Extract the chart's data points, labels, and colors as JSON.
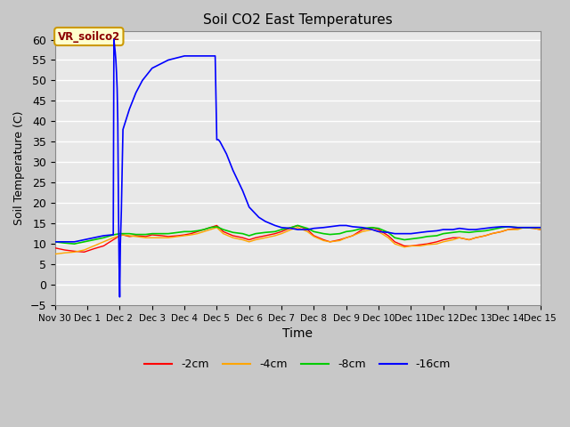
{
  "title": "Soil CO2 East Temperatures",
  "xlabel": "Time",
  "ylabel": "Soil Temperature (C)",
  "ylim": [
    -5,
    62
  ],
  "yticks": [
    -5,
    0,
    5,
    10,
    15,
    20,
    25,
    30,
    35,
    40,
    45,
    50,
    55,
    60
  ],
  "annotation_text": "VR_soilco2",
  "annotation_bg": "#ffffcc",
  "annotation_border": "#cc9900",
  "series_colors": {
    "-2cm": "#ff0000",
    "-4cm": "#ffa500",
    "-8cm": "#00cc00",
    "-16cm": "#0000ff"
  },
  "xtick_labels": [
    "Nov 30",
    "Dec 1",
    "Dec 2",
    "Dec 3",
    "Dec 4",
    "Dec 5",
    "Dec 6",
    "Dec 7",
    "Dec 8",
    "Dec 9",
    "Dec 10",
    "Dec 11",
    "Dec 12",
    "Dec 13",
    "Dec 14",
    "Dec 15"
  ],
  "x_2cm": [
    0,
    0.3,
    0.6,
    0.9,
    1.2,
    1.5,
    1.8,
    2.0,
    2.1,
    2.3,
    2.5,
    2.8,
    3.0,
    3.3,
    3.5,
    3.8,
    4.0,
    4.2,
    4.4,
    4.6,
    4.8,
    5.0,
    5.2,
    5.5,
    5.8,
    6.0,
    6.2,
    6.5,
    6.8,
    7.0,
    7.3,
    7.5,
    7.8,
    8.0,
    8.3,
    8.5,
    8.8,
    9.0,
    9.2,
    9.5,
    9.8,
    10.0,
    10.3,
    10.5,
    10.8,
    11.0,
    11.3,
    11.5,
    11.8,
    12.0,
    12.3,
    12.5,
    12.8,
    13.0,
    13.3,
    13.5,
    13.8,
    14.0,
    14.3,
    14.5,
    14.8,
    15.0
  ],
  "y_2cm": [
    9.0,
    8.5,
    8.2,
    8.0,
    8.8,
    9.5,
    11.0,
    12.0,
    12.2,
    11.8,
    12.0,
    11.8,
    12.2,
    12.0,
    11.8,
    12.0,
    12.2,
    12.5,
    13.0,
    13.5,
    14.0,
    14.5,
    13.0,
    12.0,
    11.5,
    11.0,
    11.5,
    12.0,
    12.5,
    13.0,
    14.0,
    14.5,
    13.5,
    12.0,
    11.0,
    10.5,
    11.0,
    11.5,
    12.0,
    13.5,
    14.0,
    13.5,
    12.0,
    10.5,
    9.5,
    9.5,
    9.8,
    10.0,
    10.5,
    11.0,
    11.5,
    11.5,
    11.0,
    11.5,
    12.0,
    12.5,
    13.0,
    13.5,
    13.8,
    14.0,
    13.8,
    13.5
  ],
  "x_4cm": [
    0,
    0.3,
    0.6,
    0.9,
    1.2,
    1.5,
    1.8,
    2.0,
    2.1,
    2.3,
    2.5,
    2.8,
    3.0,
    3.3,
    3.5,
    3.8,
    4.0,
    4.2,
    4.4,
    4.6,
    4.8,
    5.0,
    5.2,
    5.5,
    5.8,
    6.0,
    6.2,
    6.5,
    6.8,
    7.0,
    7.3,
    7.5,
    7.8,
    8.0,
    8.3,
    8.5,
    8.8,
    9.0,
    9.2,
    9.5,
    9.8,
    10.0,
    10.3,
    10.5,
    10.8,
    11.0,
    11.3,
    11.5,
    11.8,
    12.0,
    12.3,
    12.5,
    12.8,
    13.0,
    13.3,
    13.5,
    13.8,
    14.0,
    14.3,
    14.5,
    14.8,
    15.0
  ],
  "y_4cm": [
    7.5,
    7.8,
    8.0,
    8.5,
    9.5,
    10.5,
    11.5,
    12.0,
    12.2,
    12.0,
    11.8,
    11.5,
    11.5,
    11.5,
    11.5,
    11.8,
    12.0,
    12.2,
    12.5,
    13.0,
    13.5,
    14.0,
    12.5,
    11.5,
    11.0,
    10.5,
    11.0,
    11.5,
    12.0,
    12.5,
    13.5,
    14.0,
    13.0,
    11.8,
    10.8,
    10.5,
    10.8,
    11.5,
    12.0,
    13.0,
    13.5,
    13.0,
    11.5,
    10.0,
    9.2,
    9.5,
    9.5,
    9.8,
    10.0,
    10.5,
    11.0,
    11.5,
    11.0,
    11.5,
    12.0,
    12.5,
    13.0,
    13.5,
    13.5,
    14.0,
    13.8,
    13.5
  ],
  "x_8cm": [
    0,
    0.3,
    0.6,
    0.9,
    1.2,
    1.5,
    1.8,
    2.0,
    2.1,
    2.3,
    2.5,
    2.8,
    3.0,
    3.3,
    3.5,
    3.8,
    4.0,
    4.2,
    4.4,
    4.6,
    4.8,
    5.0,
    5.2,
    5.5,
    5.8,
    6.0,
    6.2,
    6.5,
    6.8,
    7.0,
    7.3,
    7.5,
    7.8,
    8.0,
    8.3,
    8.5,
    8.8,
    9.0,
    9.2,
    9.5,
    9.8,
    10.0,
    10.3,
    10.5,
    10.8,
    11.0,
    11.3,
    11.5,
    11.8,
    12.0,
    12.3,
    12.5,
    12.8,
    13.0,
    13.3,
    13.5,
    13.8,
    14.0,
    14.3,
    14.5,
    14.8,
    15.0
  ],
  "y_8cm": [
    10.5,
    10.2,
    10.0,
    10.5,
    11.0,
    11.5,
    12.2,
    12.5,
    12.5,
    12.5,
    12.3,
    12.3,
    12.5,
    12.5,
    12.5,
    12.8,
    13.0,
    13.0,
    13.2,
    13.5,
    14.0,
    14.2,
    13.5,
    12.8,
    12.5,
    12.0,
    12.5,
    12.8,
    13.0,
    13.5,
    14.0,
    14.5,
    13.8,
    13.0,
    12.5,
    12.3,
    12.5,
    13.0,
    13.2,
    13.8,
    14.0,
    13.8,
    12.8,
    11.5,
    11.0,
    11.2,
    11.5,
    11.8,
    12.0,
    12.5,
    12.8,
    13.0,
    12.8,
    13.0,
    13.2,
    13.5,
    14.0,
    14.2,
    14.0,
    14.0,
    14.0,
    14.0
  ],
  "x_16cm": [
    0,
    0.3,
    0.6,
    0.9,
    1.2,
    1.5,
    1.75,
    1.8,
    1.82,
    1.84,
    1.86,
    1.88,
    1.9,
    1.92,
    1.94,
    1.96,
    1.98,
    2.0,
    2.02,
    2.05,
    2.1,
    2.2,
    2.3,
    2.5,
    2.7,
    3.0,
    3.5,
    4.0,
    4.5,
    4.9,
    4.95,
    5.0,
    5.05,
    5.1,
    5.3,
    5.5,
    5.8,
    6.0,
    6.3,
    6.5,
    6.8,
    7.0,
    7.3,
    7.5,
    7.8,
    8.0,
    8.3,
    8.5,
    8.8,
    9.0,
    9.2,
    9.5,
    9.8,
    10.0,
    10.3,
    10.5,
    10.8,
    11.0,
    11.3,
    11.5,
    11.8,
    12.0,
    12.3,
    12.5,
    12.8,
    13.0,
    13.3,
    13.5,
    13.8,
    14.0,
    14.3,
    14.5,
    14.8,
    15.0
  ],
  "y_16cm": [
    10.5,
    10.5,
    10.5,
    11.0,
    11.5,
    12.0,
    12.2,
    12.2,
    60.0,
    58.5,
    57.0,
    55.0,
    52.0,
    48.0,
    40.0,
    20.0,
    5.0,
    -3.0,
    10.0,
    18.0,
    38.0,
    40.5,
    43.0,
    47.0,
    50.0,
    53.0,
    55.0,
    56.0,
    56.0,
    56.0,
    56.0,
    35.5,
    35.5,
    35.0,
    32.0,
    28.0,
    23.0,
    19.0,
    16.5,
    15.5,
    14.5,
    14.0,
    13.8,
    13.5,
    13.5,
    13.8,
    14.0,
    14.2,
    14.5,
    14.5,
    14.2,
    14.0,
    13.5,
    13.0,
    12.8,
    12.5,
    12.5,
    12.5,
    12.8,
    13.0,
    13.2,
    13.5,
    13.5,
    13.8,
    13.5,
    13.5,
    13.8,
    14.0,
    14.2,
    14.2,
    14.0,
    14.0,
    14.0,
    14.0
  ]
}
